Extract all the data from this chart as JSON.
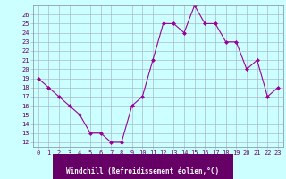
{
  "x": [
    0,
    1,
    2,
    3,
    4,
    5,
    6,
    7,
    8,
    9,
    10,
    11,
    12,
    13,
    14,
    15,
    16,
    17,
    18,
    19,
    20,
    21,
    22,
    23
  ],
  "y": [
    19,
    18,
    17,
    16,
    15,
    13,
    13,
    12,
    12,
    16,
    17,
    21,
    25,
    25,
    24,
    27,
    25,
    25,
    23,
    23,
    20,
    21,
    17,
    18
  ],
  "line_color": "#990099",
  "marker": "D",
  "marker_size": 2,
  "linewidth": 0.8,
  "bg_color": "#ccffff",
  "xlabel_bar_color": "#660066",
  "grid_color": "#aabbcc",
  "xlabel": "Windchill (Refroidissement éolien,°C)",
  "xlabel_fontsize": 5.5,
  "tick_color": "#660066",
  "tick_fontsize": 5,
  "ylim": [
    11.5,
    27.0
  ],
  "xlim": [
    -0.5,
    23.5
  ],
  "yticks": [
    12,
    13,
    14,
    15,
    16,
    17,
    18,
    19,
    20,
    21,
    22,
    23,
    24,
    25,
    26
  ],
  "xticks": [
    0,
    1,
    2,
    3,
    4,
    5,
    6,
    7,
    8,
    9,
    10,
    11,
    12,
    13,
    14,
    15,
    16,
    17,
    18,
    19,
    20,
    21,
    22,
    23
  ]
}
